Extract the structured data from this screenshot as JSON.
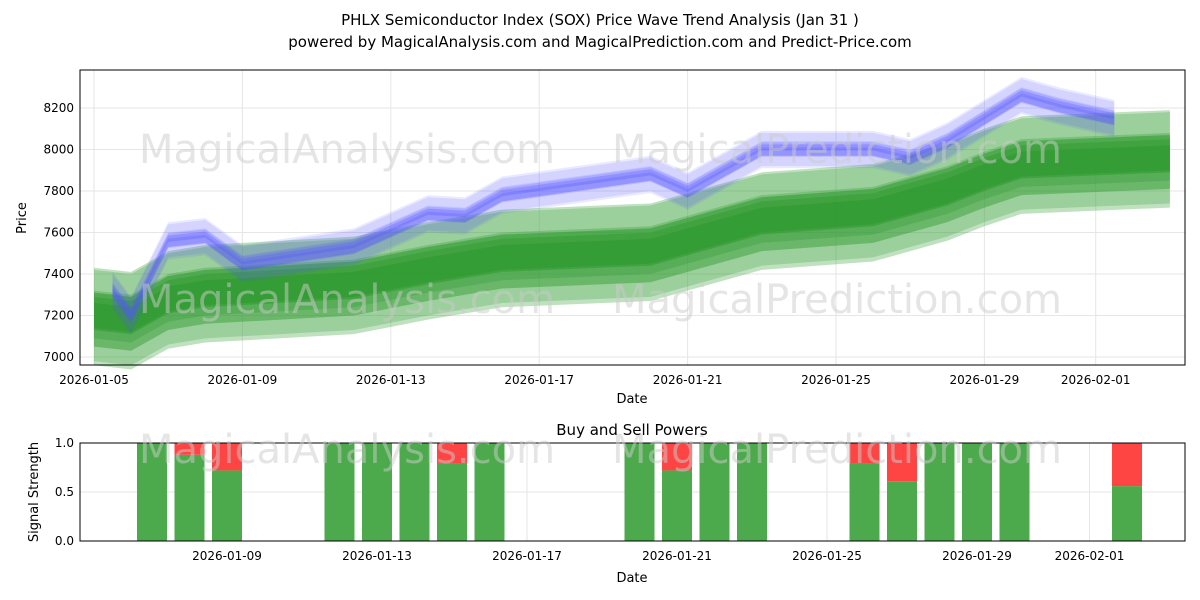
{
  "title": "PHLX Semiconductor Index (SOX) Price Wave Trend Analysis (Jan 31 )",
  "subtitle": "powered by MagicalAnalysis.com and MagicalPrediction.com and Predict-Price.com",
  "watermarks": [
    "MagicalAnalysis.com",
    "MagicalPrediction.com"
  ],
  "colors": {
    "green": "#2e9a2e",
    "red": "#ff4444",
    "blue": "#5555ff",
    "bargreen": "#4caa4c"
  },
  "chart_data": [
    {
      "type": "area",
      "title": "",
      "xlabel": "Date",
      "ylabel": "Price",
      "ylim": [
        6980,
        8380
      ],
      "yticks": [
        7000,
        7200,
        7400,
        7600,
        7800,
        8000,
        8200
      ],
      "xticks": [
        "2026-01-05",
        "2026-01-09",
        "2026-01-13",
        "2026-01-17",
        "2026-01-21",
        "2026-01-25",
        "2026-01-29",
        "2026-02-01"
      ],
      "xtick_days": [
        0,
        4,
        8,
        12,
        16,
        20,
        24,
        27
      ],
      "blue_wave": {
        "days": [
          0.5,
          1,
          2,
          3,
          4,
          7,
          9,
          10,
          11,
          15,
          16,
          18,
          21,
          22,
          23,
          24,
          25,
          26,
          27.5
        ],
        "values": [
          7320,
          7200,
          7560,
          7580,
          7450,
          7530,
          7690,
          7680,
          7780,
          7880,
          7800,
          8000,
          8000,
          7960,
          8040,
          8150,
          8260,
          8210,
          8150
        ]
      },
      "green_wave": {
        "days": [
          0,
          1,
          2,
          3,
          7,
          9,
          11,
          15,
          16,
          18,
          21,
          22,
          23,
          24,
          25,
          29
        ],
        "values": [
          7200,
          7180,
          7280,
          7310,
          7350,
          7420,
          7480,
          7510,
          7560,
          7660,
          7700,
          7750,
          7800,
          7870,
          7930,
          7960
        ]
      }
    },
    {
      "type": "bar",
      "title": "Buy and Sell Powers",
      "xlabel": "Date",
      "ylabel": "Signal Strength",
      "ylim": [
        0,
        1
      ],
      "yticks": [
        "0.0",
        "0.5",
        "1.0"
      ],
      "xticks": [
        "2026-01-09",
        "2026-01-13",
        "2026-01-17",
        "2026-01-21",
        "2026-01-25",
        "2026-01-29",
        "2026-02-01"
      ],
      "xtick_days": [
        4,
        8,
        12,
        16,
        20,
        24,
        27
      ],
      "days": [
        2,
        3,
        4,
        7,
        8,
        9,
        10,
        11,
        15,
        16,
        17,
        18,
        21,
        22,
        23,
        24,
        25,
        28
      ],
      "buy": [
        1,
        0.88,
        0.72,
        1,
        1,
        1,
        0.79,
        1,
        1,
        0.72,
        1,
        1,
        0.79,
        0.61,
        1,
        1,
        1,
        0.56
      ]
    }
  ]
}
